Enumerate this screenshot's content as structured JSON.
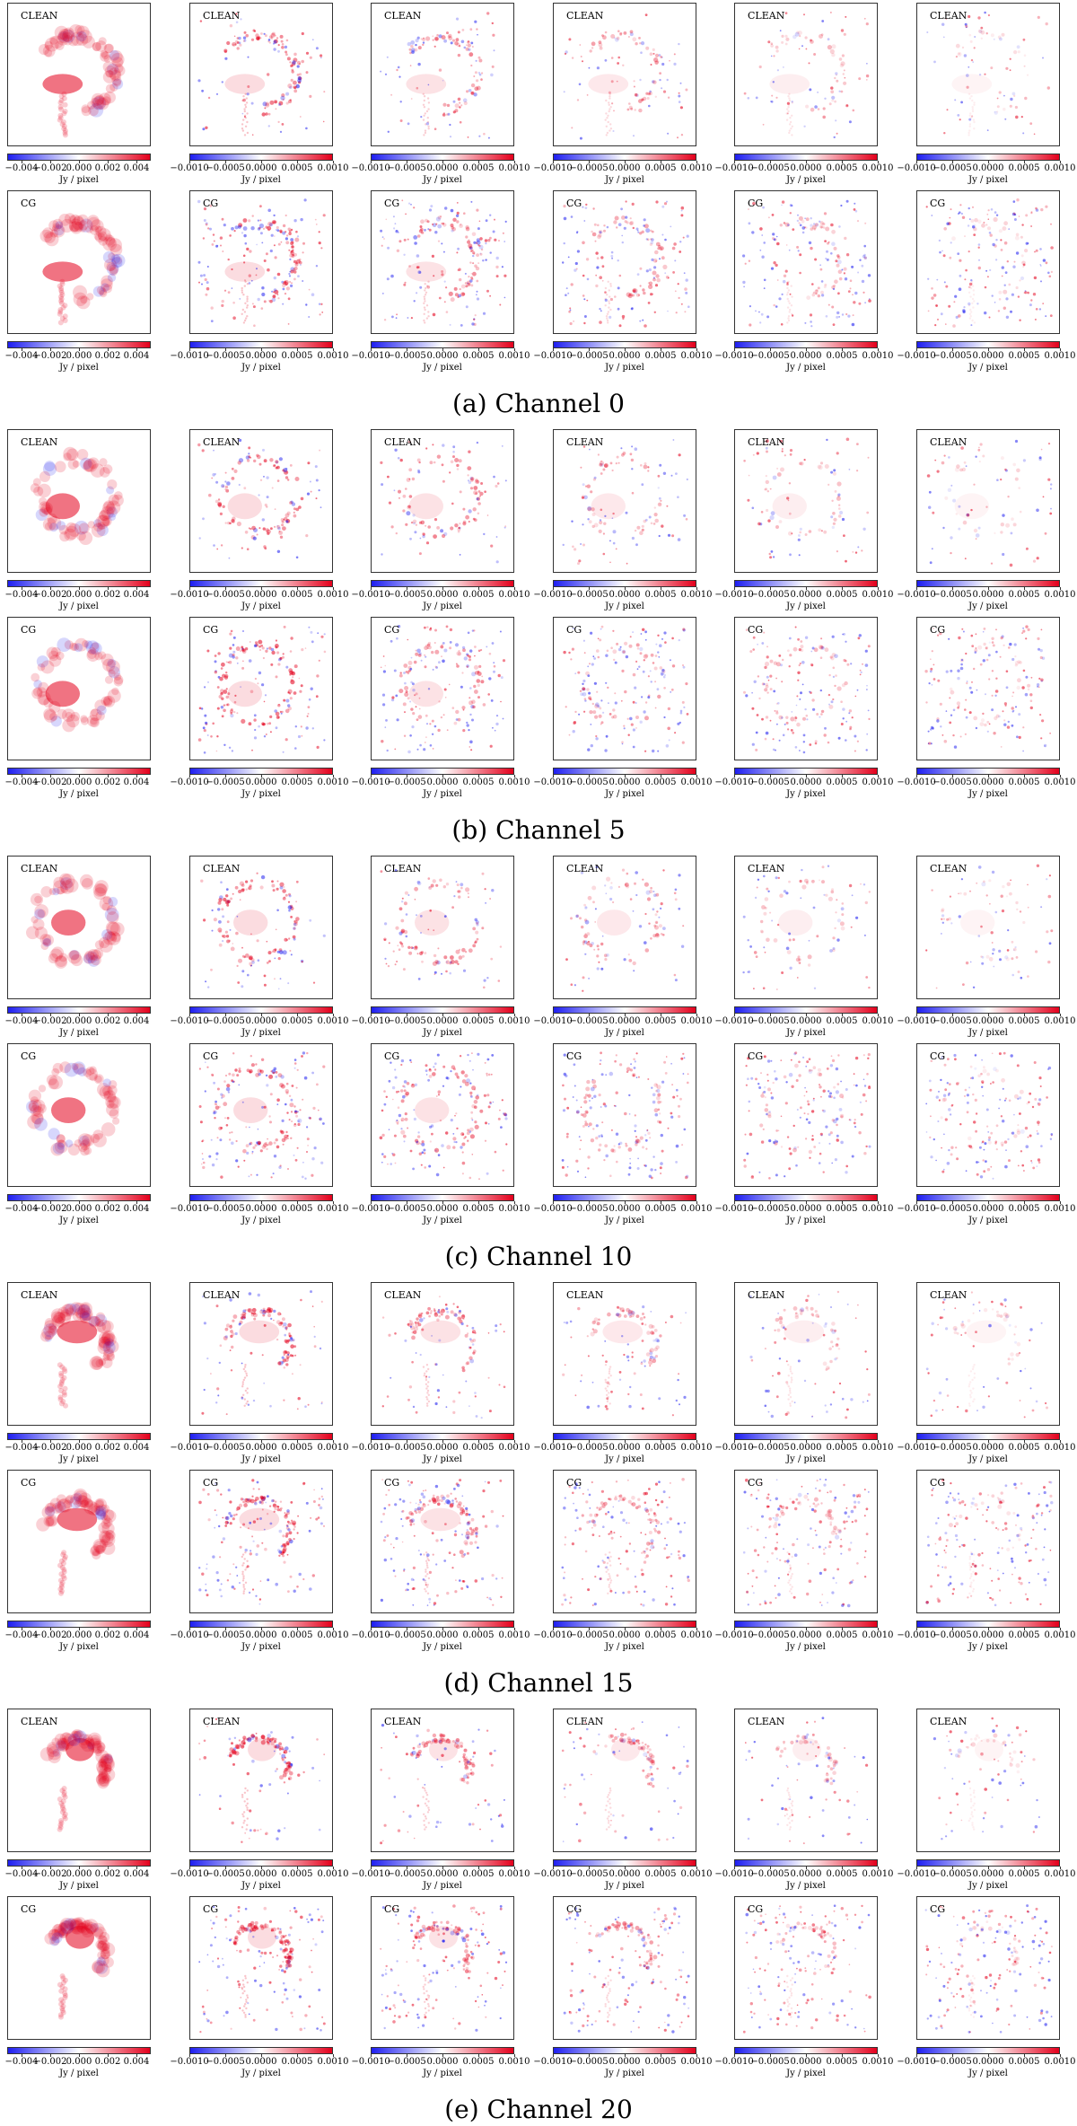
{
  "colormap": {
    "negative": "#1f1ff0",
    "neutral": "#ffffff",
    "positive": "#e4001c"
  },
  "unit": "Jy / pixel",
  "methods": [
    "CLEAN",
    "CG"
  ],
  "ticks_first_column": [
    "−0.004",
    "−0.002",
    "0.000",
    "0.002",
    "0.004"
  ],
  "ticks_other_columns": [
    "−0.0010",
    "−0.0005",
    "0.0000",
    "0.0005",
    "0.0010"
  ],
  "colorbar_ranges": {
    "first_column": [
      -0.005,
      0.005
    ],
    "other_columns": [
      -0.001,
      0.001
    ]
  },
  "channels": [
    {
      "caption": "(a) Channel 0"
    },
    {
      "caption": "(b) Channel 5"
    },
    {
      "caption": "(c) Channel 10"
    },
    {
      "caption": "(d) Channel 15"
    },
    {
      "caption": "(e) Channel 20"
    }
  ]
}
